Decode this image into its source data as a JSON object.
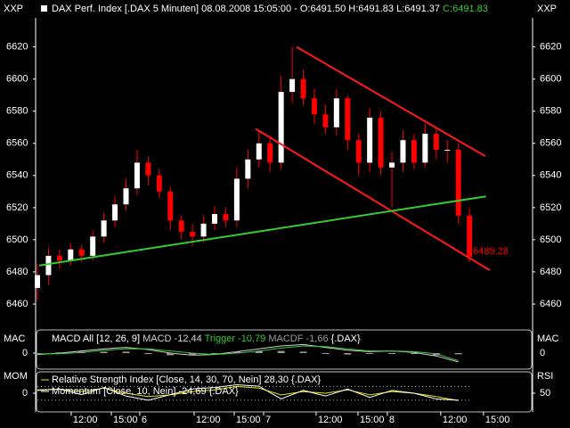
{
  "chart_data": [
    {
      "type": "candlestick",
      "title": "DAX Perf. Index [.DAX  5 Minuten] 08.08.2008 15:05:00 - O:6491.50 H:6491.83 L:6491.37",
      "title_close": "C:6491.83",
      "corner_labels": [
        "XXP",
        "XXP"
      ],
      "x": [
        0,
        1,
        2,
        3,
        4,
        5,
        6,
        7,
        8,
        9,
        10,
        11,
        12,
        13,
        14,
        15,
        16,
        17,
        18,
        19,
        20,
        21,
        22,
        23,
        24,
        25,
        26,
        27,
        28,
        29,
        30,
        31,
        32,
        33,
        34,
        35,
        36,
        37,
        38,
        39
      ],
      "open": [
        6470,
        6478,
        6490,
        6487,
        6494,
        6490,
        6502,
        6512,
        6522,
        6532,
        6548,
        6540,
        6530,
        6512,
        6505,
        6502,
        6510,
        6516,
        6512,
        6538,
        6550,
        6560,
        6548,
        6592,
        6600,
        6588,
        6578,
        6570,
        6588,
        6562,
        6548,
        6576,
        6545,
        6548,
        6562,
        6548,
        6566,
        6556,
        6556,
        6515
      ],
      "high": [
        6485,
        6495,
        6494,
        6498,
        6497,
        6506,
        6517,
        6527,
        6538,
        6556,
        6552,
        6544,
        6533,
        6515,
        6510,
        6515,
        6521,
        6520,
        6545,
        6556,
        6568,
        6565,
        6602,
        6620,
        6606,
        6594,
        6584,
        6594,
        6590,
        6566,
        6582,
        6580,
        6555,
        6568,
        6566,
        6572,
        6570,
        6562,
        6560,
        6520
      ],
      "low": [
        6462,
        6472,
        6482,
        6484,
        6486,
        6487,
        6498,
        6508,
        6518,
        6528,
        6534,
        6526,
        6506,
        6500,
        6496,
        6498,
        6506,
        6508,
        6508,
        6532,
        6545,
        6542,
        6544,
        6585,
        6584,
        6572,
        6566,
        6565,
        6556,
        6540,
        6542,
        6540,
        6520,
        6542,
        6544,
        6545,
        6550,
        6548,
        6510,
        6486
      ],
      "close": [
        6478,
        6490,
        6487,
        6494,
        6490,
        6502,
        6512,
        6522,
        6532,
        6548,
        6540,
        6530,
        6512,
        6505,
        6502,
        6510,
        6516,
        6512,
        6538,
        6550,
        6560,
        6548,
        6592,
        6600,
        6588,
        6578,
        6570,
        6588,
        6562,
        6548,
        6576,
        6545,
        6548,
        6562,
        6548,
        6566,
        6556,
        6556,
        6515,
        6489.28
      ],
      "up_color": "#ffffff",
      "down_color": "#ff0000",
      "xlim": [
        -0.16,
        44.7
      ],
      "ylim": [
        6445,
        6637
      ],
      "yticks": [
        6460,
        6480,
        6500,
        6520,
        6540,
        6560,
        6580,
        6600,
        6620
      ],
      "xticks": [
        {
          "value": 3.05,
          "label": "12:00"
        },
        {
          "value": 6.67,
          "label": "15:00"
        },
        {
          "value": 9.24,
          "label": "6"
        },
        {
          "value": 14.15,
          "label": "12:00"
        },
        {
          "value": 17.77,
          "label": "15:00"
        },
        {
          "value": 20.42,
          "label": "7"
        },
        {
          "value": 25.16,
          "label": "12:00"
        },
        {
          "value": 28.94,
          "label": "15:00"
        },
        {
          "value": 31.59,
          "label": "8"
        },
        {
          "value": 36.41,
          "label": "12:00"
        },
        {
          "value": 40.27,
          "label": "15:00"
        }
      ],
      "trend_lines": [
        {
          "color": "#ff1a1a",
          "x": [
            23.39,
            40.43
          ],
          "y": [
            6620,
            6552
          ]
        },
        {
          "color": "#ff1a1a",
          "x": [
            19.7,
            40.84
          ],
          "y": [
            6569,
            6481
          ]
        },
        {
          "color": "#33cc33",
          "x": [
            0.16,
            40.5
          ],
          "y": [
            6484,
            6527
          ]
        }
      ]
    },
    {
      "type": "macd",
      "title": "MACD All [12, 26, 9]",
      "suffix": "{.DAX}",
      "axis_labels": [
        "MAC",
        "MAC"
      ],
      "x": [
        0,
        2,
        4,
        6,
        8,
        10,
        12,
        14,
        16,
        18,
        20,
        22,
        24,
        26,
        28,
        30,
        32,
        34,
        36,
        38
      ],
      "ylim": [
        -20,
        30
      ],
      "yticks": [
        0
      ],
      "series": [
        {
          "name": "MACD -12,44",
          "color": "#d0d0d0",
          "values": [
            -2,
            0,
            3,
            6,
            8,
            5,
            0,
            -3,
            -2,
            2,
            6,
            10,
            12,
            8,
            4,
            2,
            3,
            1,
            -4,
            -12.44
          ]
        },
        {
          "name": "Trigger -10,79",
          "color": "#33cc33",
          "values": [
            -1,
            -1,
            1,
            4,
            6,
            6,
            3,
            0,
            -2,
            0,
            3,
            7,
            10,
            9,
            6,
            3,
            3,
            2,
            -1,
            -10.79
          ]
        },
        {
          "name": "MACDF -1,66",
          "color": "#9a9a9a",
          "kind": "bar",
          "values": [
            -1,
            1,
            2,
            2,
            2,
            -1,
            -3,
            -3,
            0,
            2,
            3,
            3,
            2,
            -1,
            -2,
            -1,
            0,
            -1,
            -3,
            -1.66
          ]
        }
      ]
    },
    {
      "type": "line",
      "axis_labels": [
        "MOM",
        "RSI"
      ],
      "x": [
        0,
        2,
        4,
        6,
        8,
        10,
        12,
        14,
        16,
        18,
        20,
        22,
        24,
        26,
        28,
        30,
        32,
        34,
        36,
        38
      ],
      "ylim": [
        -60,
        60
      ],
      "yticks": [
        0
      ],
      "y2lim": [
        0,
        100
      ],
      "y2ticks": [
        50
      ],
      "levels": [
        30,
        70
      ],
      "series": [
        {
          "name": "Relative Strength Index [Close, 14, 30, 70, Nein] 28,30 {.DAX}",
          "color": "#e6e600",
          "axis": "y2",
          "values": [
            60,
            62,
            55,
            65,
            50,
            40,
            45,
            55,
            60,
            70,
            65,
            45,
            55,
            50,
            60,
            45,
            55,
            50,
            40,
            28.3
          ]
        },
        {
          "name": "Momentum [Close, 10, Nein] -24,69 {.DAX}",
          "color": "#ffffff",
          "values": [
            10,
            15,
            -5,
            20,
            -10,
            -25,
            -5,
            15,
            20,
            30,
            25,
            -20,
            10,
            -10,
            15,
            -15,
            10,
            0,
            -20,
            -24.69
          ]
        }
      ]
    }
  ]
}
